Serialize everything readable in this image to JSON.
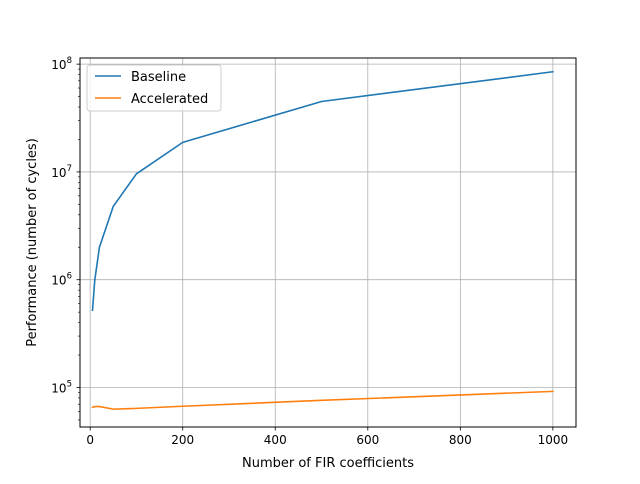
{
  "chart_data": {
    "type": "line",
    "title": "",
    "xlabel": "Number of FIR coefficients",
    "ylabel": "Performance (number of cycles)",
    "xlim": [
      -22,
      1050
    ],
    "ylim": [
      43000,
      114000000
    ],
    "yscale": "log",
    "grid": true,
    "legend_position": "top-left",
    "x_ticks": [
      {
        "value": 0,
        "label": "0"
      },
      {
        "value": 200,
        "label": "200"
      },
      {
        "value": 400,
        "label": "400"
      },
      {
        "value": 600,
        "label": "600"
      },
      {
        "value": 800,
        "label": "800"
      },
      {
        "value": 1000,
        "label": "1000"
      }
    ],
    "y_ticks": [
      {
        "value": 100000,
        "base": "10",
        "exp": "5"
      },
      {
        "value": 1000000,
        "base": "10",
        "exp": "6"
      },
      {
        "value": 10000000,
        "base": "10",
        "exp": "7"
      },
      {
        "value": 100000000,
        "base": "10",
        "exp": "8"
      }
    ],
    "series": [
      {
        "name": "Baseline",
        "color": "#1f77b4",
        "x": [
          5,
          10,
          20,
          50,
          100,
          200,
          500,
          1000
        ],
        "y": [
          520000,
          1000000,
          2000000,
          4800000,
          9600000,
          18800000,
          45000000,
          85000000
        ]
      },
      {
        "name": "Accelerated",
        "color": "#ff7f0e",
        "x": [
          5,
          10,
          20,
          50,
          100,
          200,
          500,
          1000
        ],
        "y": [
          65500,
          66500,
          66500,
          63000,
          64000,
          67000,
          76000,
          92000
        ]
      }
    ]
  }
}
